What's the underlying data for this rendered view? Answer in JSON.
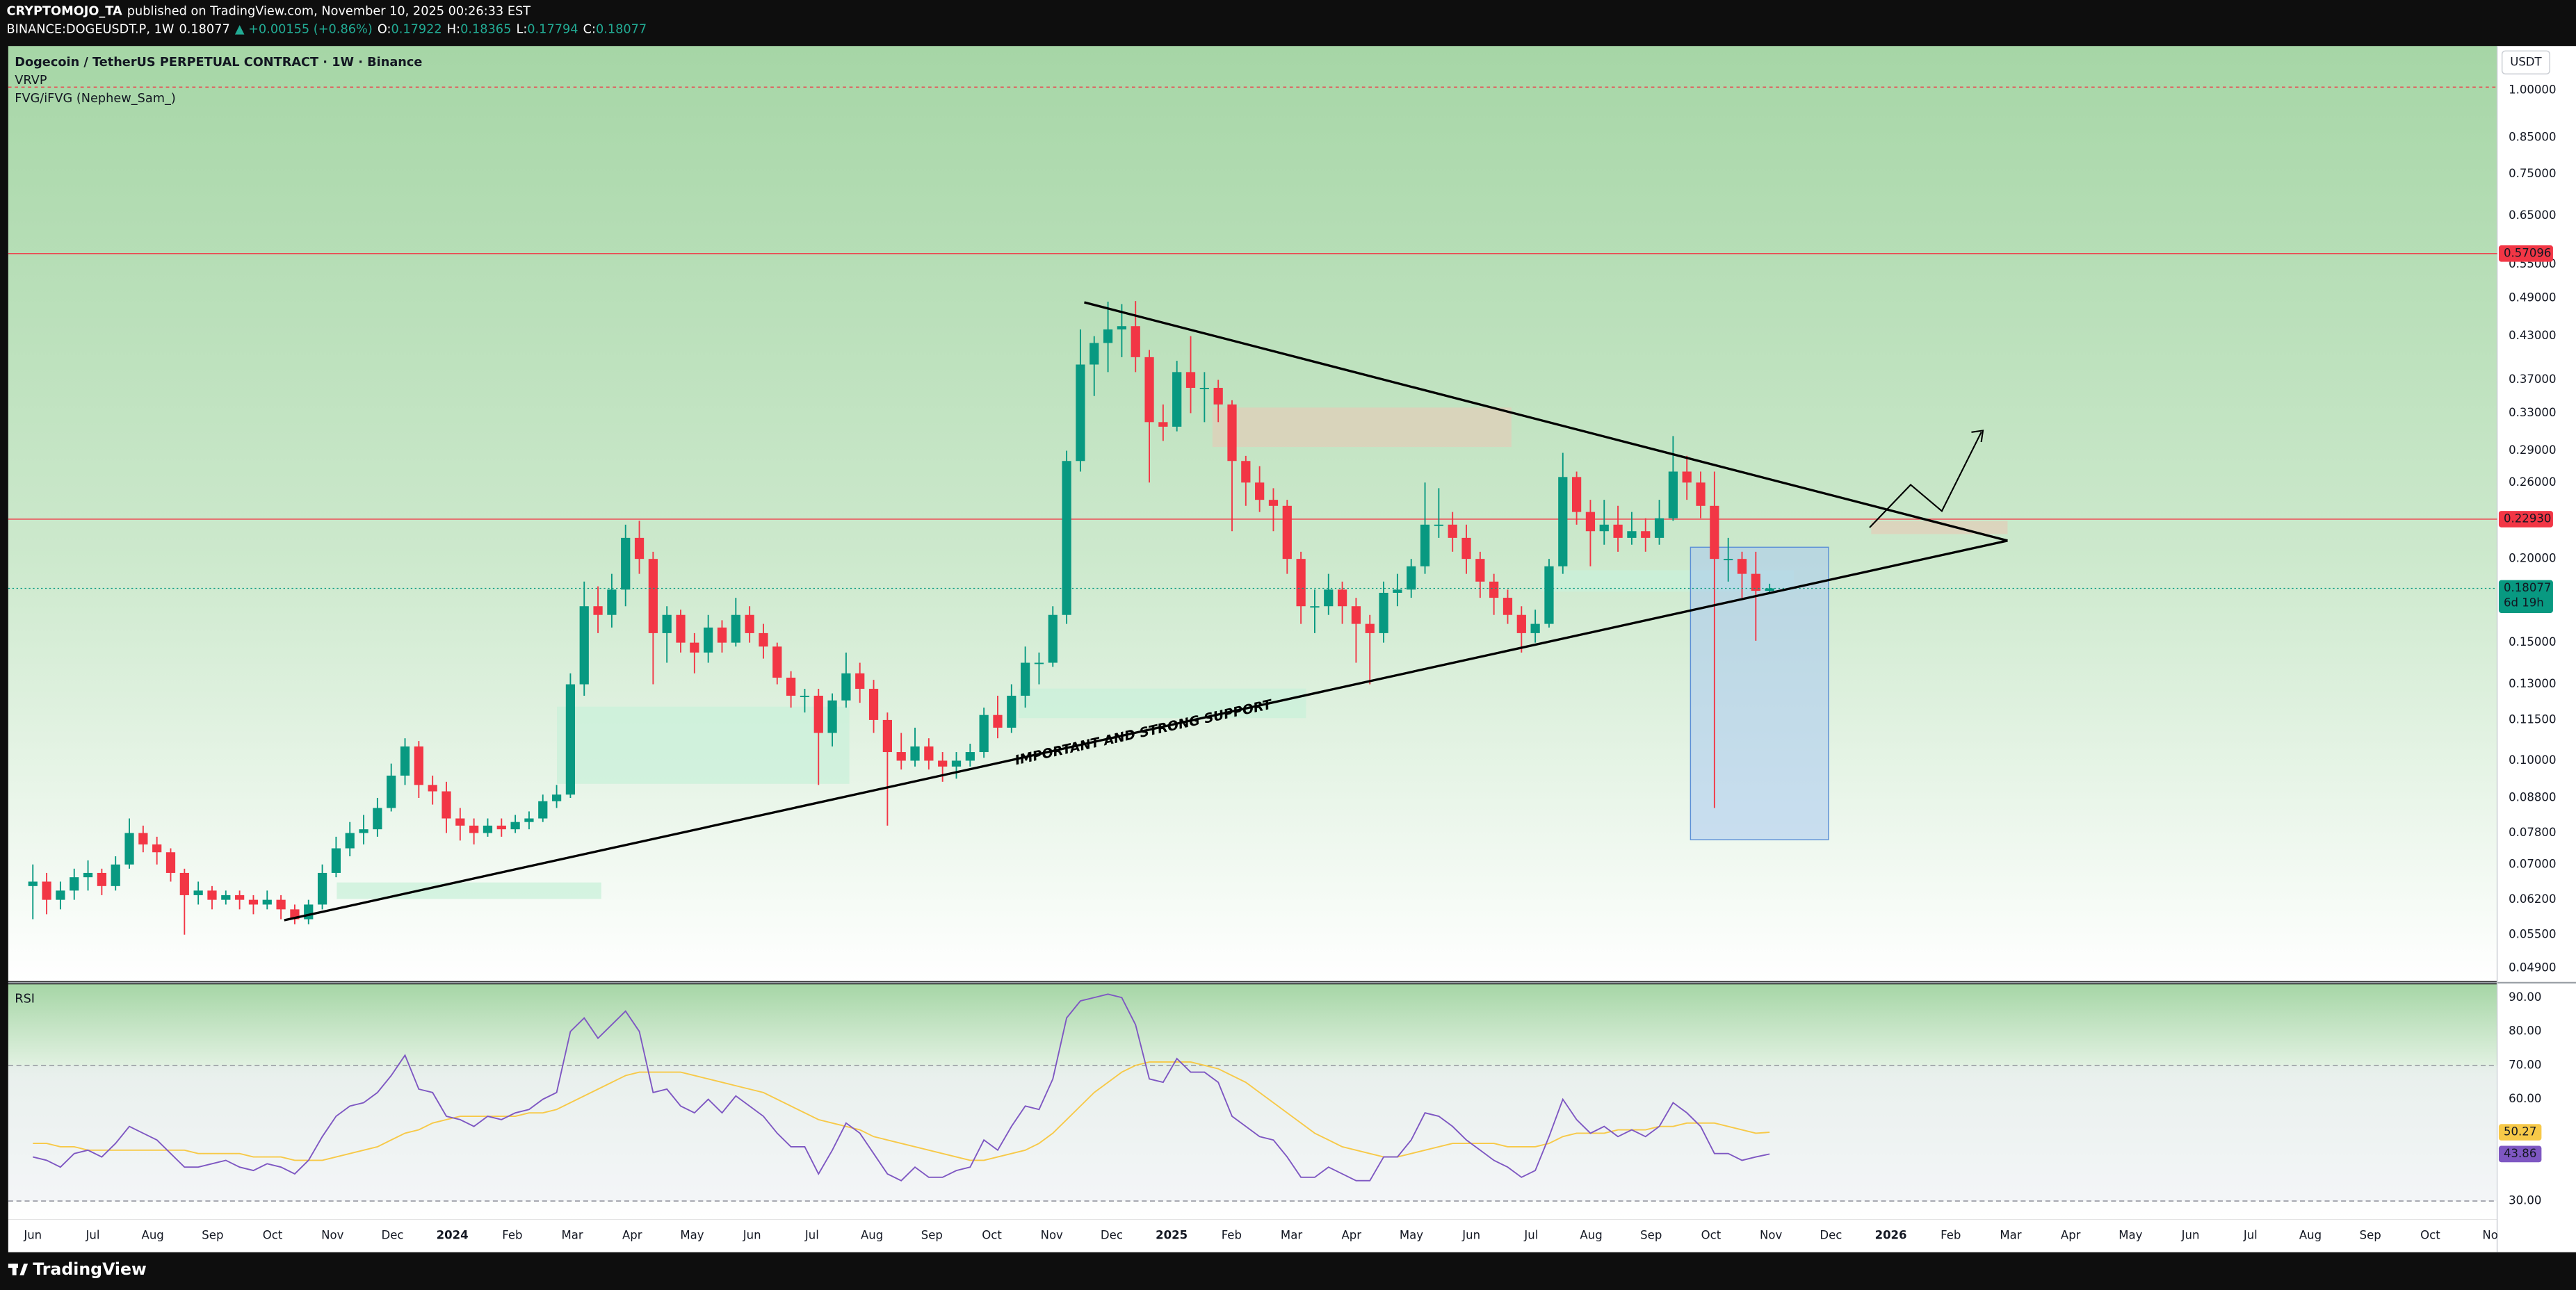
{
  "header": {
    "author": "CRYPTOMOJO_TA",
    "published": "published on TradingView.com, November 10, 2025 00:26:33 EST",
    "symbol": "BINANCE:DOGEUSDT.P, 1W",
    "last": "0.18077",
    "change": "▲ +0.00155 (+0.86%)",
    "ohlc_labels": [
      "O:",
      "H:",
      "L:",
      "C:"
    ],
    "ohlc_values": [
      "0.17922",
      "0.18365",
      "0.17794",
      "0.18077"
    ]
  },
  "footer": "TradingView",
  "chart_data": [
    {
      "type": "candlestick",
      "title": "Dogecoin / TetherUS PERPETUAL CONTRACT · 1W · Binance",
      "indicators": [
        "VRVP",
        "FVG/iFVG (Nephew_Sam_)"
      ],
      "currency": "USDT",
      "log_scale": true,
      "up_color": "#089981",
      "down_color": "#f23645",
      "open": [
        0.065,
        0.066,
        0.062,
        0.064,
        0.067,
        0.068,
        0.065,
        0.07,
        0.078,
        0.075,
        0.073,
        0.068,
        0.063,
        0.064,
        0.062,
        0.063,
        0.062,
        0.061,
        0.062,
        0.06,
        0.058,
        0.061,
        0.068,
        0.074,
        0.078,
        0.079,
        0.085,
        0.095,
        0.105,
        0.092,
        0.09,
        0.082,
        0.08,
        0.078,
        0.08,
        0.079,
        0.081,
        0.082,
        0.087,
        0.089,
        0.13,
        0.17,
        0.165,
        0.18,
        0.215,
        0.2,
        0.155,
        0.165,
        0.15,
        0.145,
        0.158,
        0.15,
        0.165,
        0.155,
        0.148,
        0.133,
        0.125,
        0.125,
        0.11,
        0.123,
        0.135,
        0.128,
        0.115,
        0.103,
        0.1,
        0.105,
        0.1,
        0.098,
        0.1,
        0.103,
        0.117,
        0.112,
        0.125,
        0.14,
        0.14,
        0.165,
        0.28,
        0.39,
        0.42,
        0.44,
        0.445,
        0.4,
        0.32,
        0.315,
        0.38,
        0.36,
        0.36,
        0.34,
        0.28,
        0.26,
        0.245,
        0.24,
        0.2,
        0.17,
        0.17,
        0.18,
        0.17,
        0.16,
        0.155,
        0.178,
        0.18,
        0.195,
        0.225,
        0.225,
        0.215,
        0.2,
        0.185,
        0.175,
        0.165,
        0.155,
        0.16,
        0.195,
        0.265,
        0.235,
        0.22,
        0.225,
        0.215,
        0.22,
        0.215,
        0.23,
        0.27,
        0.26,
        0.24,
        0.2,
        0.2,
        0.19,
        0.17922
      ],
      "high": [
        0.07,
        0.068,
        0.066,
        0.069,
        0.071,
        0.069,
        0.072,
        0.082,
        0.08,
        0.077,
        0.074,
        0.069,
        0.066,
        0.065,
        0.064,
        0.064,
        0.063,
        0.064,
        0.063,
        0.061,
        0.062,
        0.07,
        0.077,
        0.081,
        0.083,
        0.088,
        0.099,
        0.108,
        0.107,
        0.095,
        0.093,
        0.085,
        0.082,
        0.082,
        0.082,
        0.083,
        0.084,
        0.089,
        0.092,
        0.135,
        0.185,
        0.182,
        0.19,
        0.225,
        0.228,
        0.205,
        0.17,
        0.168,
        0.155,
        0.165,
        0.162,
        0.175,
        0.17,
        0.16,
        0.15,
        0.136,
        0.128,
        0.128,
        0.126,
        0.145,
        0.14,
        0.132,
        0.118,
        0.11,
        0.112,
        0.108,
        0.103,
        0.103,
        0.106,
        0.12,
        0.125,
        0.13,
        0.148,
        0.145,
        0.17,
        0.29,
        0.44,
        0.43,
        0.484,
        0.48,
        0.485,
        0.41,
        0.34,
        0.395,
        0.43,
        0.38,
        0.37,
        0.345,
        0.285,
        0.275,
        0.255,
        0.245,
        0.205,
        0.18,
        0.19,
        0.185,
        0.175,
        0.165,
        0.185,
        0.19,
        0.2,
        0.26,
        0.255,
        0.235,
        0.225,
        0.205,
        0.19,
        0.18,
        0.17,
        0.168,
        0.2,
        0.288,
        0.27,
        0.245,
        0.245,
        0.24,
        0.235,
        0.23,
        0.245,
        0.305,
        0.285,
        0.27,
        0.27,
        0.215,
        0.205,
        0.205,
        0.18365
      ],
      "low": [
        0.058,
        0.059,
        0.06,
        0.062,
        0.064,
        0.063,
        0.064,
        0.069,
        0.073,
        0.07,
        0.066,
        0.055,
        0.061,
        0.06,
        0.061,
        0.06,
        0.059,
        0.06,
        0.058,
        0.057,
        0.057,
        0.06,
        0.067,
        0.072,
        0.075,
        0.077,
        0.084,
        0.092,
        0.088,
        0.086,
        0.078,
        0.076,
        0.075,
        0.077,
        0.077,
        0.078,
        0.079,
        0.081,
        0.085,
        0.088,
        0.125,
        0.155,
        0.158,
        0.17,
        0.19,
        0.13,
        0.14,
        0.145,
        0.135,
        0.14,
        0.145,
        0.148,
        0.15,
        0.142,
        0.13,
        0.12,
        0.118,
        0.092,
        0.105,
        0.12,
        0.122,
        0.11,
        0.08,
        0.097,
        0.098,
        0.097,
        0.093,
        0.094,
        0.098,
        0.101,
        0.108,
        0.11,
        0.12,
        0.13,
        0.138,
        0.16,
        0.27,
        0.35,
        0.38,
        0.4,
        0.38,
        0.26,
        0.3,
        0.31,
        0.33,
        0.32,
        0.32,
        0.22,
        0.24,
        0.235,
        0.22,
        0.19,
        0.16,
        0.155,
        0.165,
        0.16,
        0.14,
        0.13,
        0.15,
        0.17,
        0.175,
        0.19,
        0.215,
        0.205,
        0.19,
        0.175,
        0.165,
        0.16,
        0.145,
        0.15,
        0.158,
        0.19,
        0.225,
        0.195,
        0.21,
        0.205,
        0.21,
        0.205,
        0.21,
        0.228,
        0.245,
        0.23,
        0.085,
        0.185,
        0.175,
        0.151,
        0.17794
      ],
      "close": [
        0.066,
        0.062,
        0.064,
        0.067,
        0.068,
        0.065,
        0.07,
        0.078,
        0.075,
        0.073,
        0.068,
        0.063,
        0.064,
        0.062,
        0.063,
        0.062,
        0.061,
        0.062,
        0.06,
        0.058,
        0.061,
        0.068,
        0.074,
        0.078,
        0.079,
        0.085,
        0.095,
        0.105,
        0.092,
        0.09,
        0.082,
        0.08,
        0.078,
        0.08,
        0.079,
        0.081,
        0.082,
        0.087,
        0.089,
        0.13,
        0.17,
        0.165,
        0.18,
        0.215,
        0.2,
        0.155,
        0.165,
        0.15,
        0.145,
        0.158,
        0.15,
        0.165,
        0.155,
        0.148,
        0.133,
        0.125,
        0.125,
        0.11,
        0.123,
        0.135,
        0.128,
        0.115,
        0.103,
        0.1,
        0.105,
        0.1,
        0.098,
        0.1,
        0.103,
        0.117,
        0.112,
        0.125,
        0.14,
        0.14,
        0.165,
        0.28,
        0.39,
        0.42,
        0.44,
        0.445,
        0.4,
        0.32,
        0.315,
        0.38,
        0.36,
        0.36,
        0.34,
        0.28,
        0.26,
        0.245,
        0.24,
        0.2,
        0.17,
        0.17,
        0.18,
        0.17,
        0.16,
        0.155,
        0.178,
        0.18,
        0.195,
        0.225,
        0.225,
        0.215,
        0.2,
        0.185,
        0.175,
        0.165,
        0.155,
        0.16,
        0.195,
        0.265,
        0.235,
        0.22,
        0.225,
        0.215,
        0.22,
        0.215,
        0.23,
        0.27,
        0.26,
        0.24,
        0.2,
        0.2,
        0.19,
        0.17922,
        0.18077
      ],
      "countdown": "6d 19h",
      "ylim": [
        0.0469,
        1.165
      ],
      "yticks": [
        {
          "value": 1.0,
          "label": "1.00000"
        },
        {
          "value": 0.85,
          "label": "0.85000"
        },
        {
          "value": 0.75,
          "label": "0.75000"
        },
        {
          "value": 0.65,
          "label": "0.65000"
        },
        {
          "value": 0.55,
          "label": "0.55000"
        },
        {
          "value": 0.49,
          "label": "0.49000"
        },
        {
          "value": 0.43,
          "label": "0.43000"
        },
        {
          "value": 0.37,
          "label": "0.37000"
        },
        {
          "value": 0.33,
          "label": "0.33000"
        },
        {
          "value": 0.29,
          "label": "0.29000"
        },
        {
          "value": 0.26,
          "label": "0.26000"
        },
        {
          "value": 0.2,
          "label": "0.20000"
        },
        {
          "value": 0.15,
          "label": "0.15000"
        },
        {
          "value": 0.13,
          "label": "0.13000"
        },
        {
          "value": 0.115,
          "label": "0.11500"
        },
        {
          "value": 0.1,
          "label": "0.10000"
        },
        {
          "value": 0.088,
          "label": "0.08800"
        },
        {
          "value": 0.078,
          "label": "0.07800"
        },
        {
          "value": 0.07,
          "label": "0.07000"
        },
        {
          "value": 0.062,
          "label": "0.06200"
        },
        {
          "value": 0.055,
          "label": "0.05500"
        },
        {
          "value": 0.049,
          "label": "0.04900"
        }
      ],
      "price_lines": [
        {
          "value": 0.57096,
          "color": "#f23645"
        },
        {
          "value": {
            "value": 0.2293,
            "label": "0.22930"
          },
          "color": "#f23645"
        }
      ],
      "time_labels": [
        "Jun",
        "Jul",
        "Aug",
        "Sep",
        "Oct",
        "Nov",
        "Dec",
        "2024",
        "Feb",
        "Mar",
        "Apr",
        "May",
        "Jun",
        "Jul",
        "Aug",
        "Sep",
        "Oct",
        "Nov",
        "Dec",
        "2025",
        "Feb",
        "Mar",
        "Apr",
        "May",
        "Jun",
        "Jul",
        "Aug",
        "Sep",
        "Oct",
        "Nov",
        "Dec",
        "2026",
        "Feb",
        "Mar",
        "Apr",
        "May",
        "Jun",
        "Jul",
        "Aug",
        "Sep",
        "Oct",
        "No"
      ],
      "annotation": "IMPORTANT AND STRONG SUPPORT"
    },
    {
      "type": "line",
      "title": "RSI",
      "band": [
        30,
        70
      ],
      "series": [
        {
          "color": "#7e57c2",
          "label_color": "#7e57c2",
          "values": [
            43,
            42,
            40,
            44,
            45,
            43,
            47,
            52,
            50,
            48,
            44,
            40,
            40,
            41,
            42,
            40,
            39,
            41,
            40,
            38,
            42,
            49,
            55,
            58,
            59,
            62,
            67,
            73,
            63,
            62,
            55,
            54,
            52,
            55,
            54,
            56,
            57,
            60,
            62,
            80,
            84,
            78,
            82,
            86,
            80,
            62,
            63,
            58,
            56,
            60,
            56,
            61,
            58,
            55,
            50,
            46,
            46,
            38,
            45,
            53,
            50,
            44,
            38,
            36,
            40,
            37,
            37,
            39,
            40,
            48,
            45,
            52,
            58,
            57,
            66,
            84,
            89,
            90,
            91,
            90,
            82,
            66,
            65,
            72,
            68,
            68,
            65,
            55,
            52,
            49,
            48,
            43,
            37,
            37,
            40,
            38,
            36,
            36,
            43,
            43,
            48,
            56,
            55,
            52,
            48,
            45,
            42,
            40,
            37,
            39,
            49,
            60,
            54,
            50,
            52,
            49,
            51,
            49,
            52,
            59,
            56,
            52,
            44,
            44,
            42,
            43,
            43.86
          ]
        },
        {
          "color": "#f7c948",
          "label_color": "#f7c948",
          "values": [
            47,
            47,
            46,
            46,
            45,
            45,
            45,
            45,
            45,
            45,
            45,
            45,
            44,
            44,
            44,
            44,
            43,
            43,
            43,
            42,
            42,
            42,
            43,
            44,
            45,
            46,
            48,
            50,
            51,
            53,
            54,
            55,
            55,
            55,
            55,
            55,
            56,
            56,
            57,
            59,
            61,
            63,
            65,
            67,
            68,
            68,
            68,
            68,
            67,
            66,
            65,
            64,
            63,
            62,
            60,
            58,
            56,
            54,
            53,
            52,
            51,
            49,
            48,
            47,
            46,
            45,
            44,
            43,
            42,
            42,
            43,
            44,
            45,
            47,
            50,
            54,
            58,
            62,
            65,
            68,
            70,
            71,
            71,
            71,
            71,
            70,
            69,
            67,
            65,
            62,
            59,
            56,
            53,
            50,
            48,
            46,
            45,
            44,
            43,
            43,
            44,
            45,
            46,
            47,
            47,
            47,
            47,
            46,
            46,
            46,
            47,
            49,
            50,
            50,
            50,
            51,
            51,
            51,
            52,
            52,
            53,
            53,
            53,
            52,
            51,
            50,
            50.27
          ]
        }
      ],
      "ylim": [
        24.6,
        93.9
      ],
      "yticks": [
        {
          "value": 90,
          "label": "90.00"
        },
        {
          "value": 80,
          "label": "80.00"
        },
        {
          "value": 70,
          "label": "70.00"
        },
        {
          "value": 60,
          "label": "60.00"
        },
        {
          "value": 30,
          "label": "30.00"
        }
      ]
    }
  ]
}
